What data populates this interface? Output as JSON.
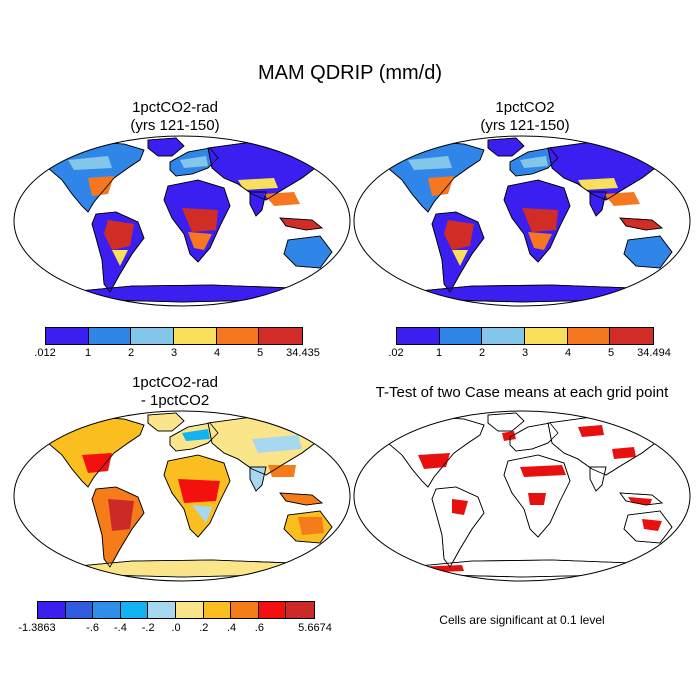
{
  "main_title": "MAM QDRIP (mm/d)",
  "panels": [
    {
      "title_line1": "1pctCO2-rad",
      "title_line2": "(yrs 121-150)",
      "colorbar": {
        "colors": [
          "#3a1ff0",
          "#2f86e8",
          "#84c6ea",
          "#fadf5a",
          "#f5771f",
          "#d22c26"
        ],
        "labels": [
          ".012",
          "1",
          "2",
          "3",
          "4",
          "5",
          "34.435"
        ]
      }
    },
    {
      "title_line1": "1pctCO2",
      "title_line2": "(yrs 121-150)",
      "colorbar": {
        "colors": [
          "#3a1ff0",
          "#2f86e8",
          "#84c6ea",
          "#fadf5a",
          "#f5771f",
          "#d22c26"
        ],
        "labels": [
          ".02",
          "1",
          "2",
          "3",
          "4",
          "5",
          "34.494"
        ]
      }
    },
    {
      "title_line1": "1pctCO2-rad",
      "title_line2": "- 1pctCO2",
      "colorbar": {
        "colors": [
          "#3a1ff0",
          "#2f5de0",
          "#2f8fe8",
          "#11b3f2",
          "#a7d8ef",
          "#fbe58a",
          "#fbbe1f",
          "#f57c19",
          "#f3100e",
          "#cc2a26"
        ],
        "labels": [
          "-1.3863",
          "",
          "-.6",
          "-.4",
          "-.2",
          ".0",
          ".2",
          ".4",
          ".6",
          "",
          "5.6674"
        ]
      }
    },
    {
      "title_line1": "T-Test of two Case means at each grid point",
      "note": "Cells are significant at 0.1 level"
    }
  ]
}
